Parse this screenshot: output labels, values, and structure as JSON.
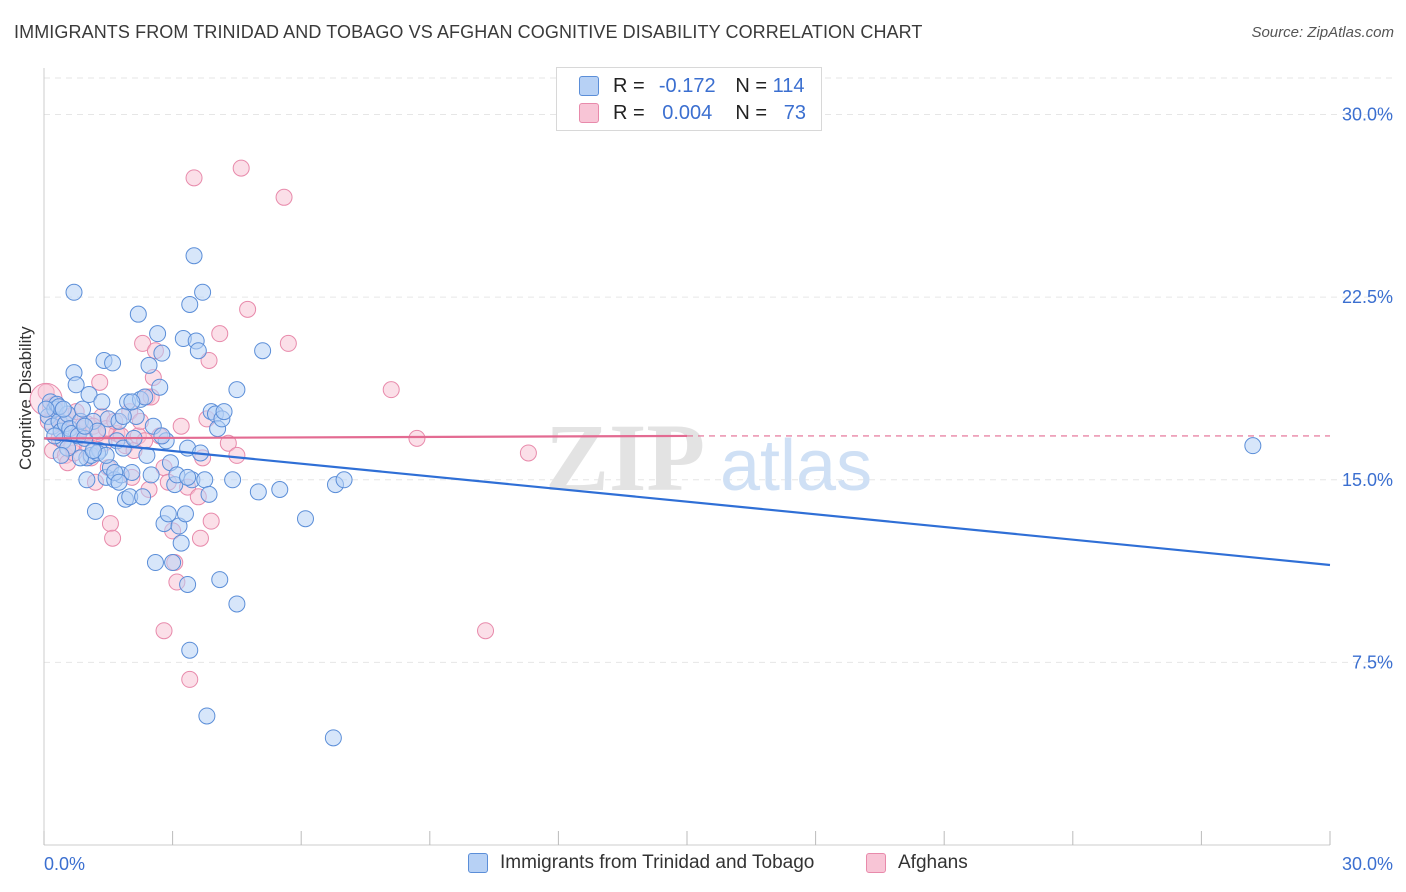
{
  "title": "IMMIGRANTS FROM TRINIDAD AND TOBAGO VS AFGHAN COGNITIVE DISABILITY CORRELATION CHART",
  "source": "Source: ZipAtlas.com",
  "watermark": {
    "zip": "ZIP",
    "atlas": "atlas"
  },
  "legend_top": [
    {
      "r_label": "R =",
      "r_value": "-0.172",
      "n_label": "N =",
      "n_value": "114"
    },
    {
      "r_label": "R =",
      "r_value": "0.004",
      "n_label": "N =",
      "n_value": "73"
    }
  ],
  "colors": {
    "blue_fill": "#b7d1f5",
    "blue_stroke": "#5b8ed8",
    "blue_line": "#2f6fd6",
    "pink_fill": "#f8c5d6",
    "pink_stroke": "#e88aab",
    "pink_line": "#e36b92",
    "tick_text": "#3b6fd0",
    "grid": "#e6e6e6"
  },
  "chart_data": {
    "type": "scatter",
    "title": "IMMIGRANTS FROM TRINIDAD AND TOBAGO VS AFGHAN COGNITIVE DISABILITY CORRELATION CHART",
    "xlabel": "",
    "ylabel": "Cognitive Disability",
    "xlim": [
      0,
      30
    ],
    "ylim": [
      0,
      31.5
    ],
    "x_tick_labels": [
      "0.0%",
      "30.0%"
    ],
    "y_ticks": [
      7.5,
      15.0,
      22.5,
      30.0
    ],
    "y_tick_labels": [
      "7.5%",
      "15.0%",
      "22.5%",
      "30.0%"
    ],
    "grid": true,
    "legend_position": "bottom",
    "series": [
      {
        "name": "Immigrants from Trinidad and Tobago",
        "color": "#5b8ed8",
        "R": -0.172,
        "N": 114,
        "trend": {
          "x": [
            0,
            30
          ],
          "y": [
            16.7,
            11.5
          ]
        },
        "points": [
          [
            0.1,
            17.6
          ],
          [
            0.15,
            18.2
          ],
          [
            0.2,
            17.2
          ],
          [
            0.25,
            17.9
          ],
          [
            0.3,
            18.1
          ],
          [
            0.35,
            17.4
          ],
          [
            0.4,
            17.0
          ],
          [
            0.45,
            16.6
          ],
          [
            0.5,
            17.3
          ],
          [
            0.55,
            17.7
          ],
          [
            0.6,
            17.1
          ],
          [
            0.65,
            16.9
          ],
          [
            0.7,
            19.4
          ],
          [
            0.7,
            22.7
          ],
          [
            0.75,
            18.9
          ],
          [
            0.8,
            16.8
          ],
          [
            0.85,
            17.4
          ],
          [
            0.9,
            17.9
          ],
          [
            0.95,
            16.7
          ],
          [
            1.0,
            15.9
          ],
          [
            1.0,
            15.0
          ],
          [
            1.05,
            18.5
          ],
          [
            1.1,
            16.0
          ],
          [
            1.15,
            17.4
          ],
          [
            1.2,
            13.7
          ],
          [
            1.25,
            17.0
          ],
          [
            1.3,
            16.2
          ],
          [
            1.35,
            18.2
          ],
          [
            1.4,
            19.9
          ],
          [
            1.45,
            15.1
          ],
          [
            1.5,
            17.5
          ],
          [
            1.55,
            15.5
          ],
          [
            1.6,
            19.8
          ],
          [
            1.65,
            15.0
          ],
          [
            1.7,
            16.6
          ],
          [
            1.75,
            17.4
          ],
          [
            1.8,
            15.2
          ],
          [
            1.85,
            16.3
          ],
          [
            1.9,
            14.2
          ],
          [
            1.95,
            18.2
          ],
          [
            2.0,
            14.3
          ],
          [
            2.05,
            15.3
          ],
          [
            2.1,
            16.7
          ],
          [
            2.15,
            17.6
          ],
          [
            2.2,
            21.8
          ],
          [
            2.25,
            18.3
          ],
          [
            2.3,
            14.3
          ],
          [
            2.35,
            18.4
          ],
          [
            2.4,
            16.0
          ],
          [
            2.45,
            19.7
          ],
          [
            2.5,
            15.2
          ],
          [
            2.55,
            17.2
          ],
          [
            2.6,
            11.6
          ],
          [
            2.65,
            21.0
          ],
          [
            2.7,
            18.8
          ],
          [
            2.75,
            20.2
          ],
          [
            2.8,
            13.2
          ],
          [
            2.85,
            16.6
          ],
          [
            2.9,
            13.6
          ],
          [
            2.95,
            15.7
          ],
          [
            3.0,
            11.6
          ],
          [
            3.05,
            14.8
          ],
          [
            3.1,
            15.2
          ],
          [
            3.15,
            13.1
          ],
          [
            3.2,
            12.4
          ],
          [
            3.25,
            20.8
          ],
          [
            3.3,
            13.6
          ],
          [
            3.35,
            16.3
          ],
          [
            3.4,
            22.2
          ],
          [
            3.45,
            15.0
          ],
          [
            3.5,
            24.2
          ],
          [
            3.55,
            20.7
          ],
          [
            3.6,
            20.3
          ],
          [
            3.65,
            16.1
          ],
          [
            3.7,
            22.7
          ],
          [
            3.75,
            15.0
          ],
          [
            3.8,
            5.3
          ],
          [
            3.85,
            14.4
          ],
          [
            3.9,
            17.8
          ],
          [
            4.0,
            17.7
          ],
          [
            4.05,
            17.1
          ],
          [
            4.1,
            10.9
          ],
          [
            4.15,
            17.5
          ],
          [
            4.2,
            17.8
          ],
          [
            4.4,
            15.0
          ],
          [
            4.5,
            18.7
          ],
          [
            4.5,
            9.9
          ],
          [
            5.0,
            14.5
          ],
          [
            5.1,
            20.3
          ],
          [
            5.5,
            14.6
          ],
          [
            6.1,
            13.4
          ],
          [
            6.8,
            14.8
          ],
          [
            7.0,
            15.0
          ],
          [
            6.75,
            4.4
          ],
          [
            3.35,
            10.7
          ],
          [
            3.4,
            8.0
          ],
          [
            28.2,
            16.4
          ],
          [
            0.55,
            16.3
          ],
          [
            0.85,
            15.9
          ],
          [
            1.25,
            16.1
          ],
          [
            1.45,
            16.0
          ],
          [
            1.65,
            15.3
          ],
          [
            2.75,
            16.8
          ],
          [
            3.35,
            15.1
          ],
          [
            0.35,
            18.0
          ],
          [
            0.45,
            17.9
          ],
          [
            0.95,
            17.2
          ],
          [
            1.15,
            16.2
          ],
          [
            1.85,
            17.6
          ],
          [
            2.05,
            18.2
          ],
          [
            0.05,
            17.9
          ],
          [
            0.25,
            16.8
          ],
          [
            0.4,
            16.0
          ],
          [
            1.75,
            14.9
          ]
        ]
      },
      {
        "name": "Afghans",
        "color": "#e88aab",
        "R": 0.004,
        "N": 73,
        "trend": {
          "x": [
            0,
            15
          ],
          "y": [
            16.7,
            16.8
          ]
        },
        "trend_dashed": {
          "x": [
            15,
            30
          ],
          "y": [
            16.8,
            16.8
          ]
        },
        "points": [
          [
            0.05,
            18.6
          ],
          [
            0.15,
            18.0
          ],
          [
            0.2,
            16.2
          ],
          [
            0.3,
            17.6
          ],
          [
            0.4,
            17.3
          ],
          [
            0.5,
            16.0
          ],
          [
            0.55,
            15.7
          ],
          [
            0.6,
            17.6
          ],
          [
            0.7,
            16.1
          ],
          [
            0.8,
            16.9
          ],
          [
            0.9,
            17.1
          ],
          [
            1.0,
            17.3
          ],
          [
            1.05,
            16.3
          ],
          [
            1.1,
            15.9
          ],
          [
            1.2,
            14.9
          ],
          [
            1.3,
            19.0
          ],
          [
            1.35,
            17.6
          ],
          [
            1.4,
            16.5
          ],
          [
            1.5,
            15.5
          ],
          [
            1.55,
            13.2
          ],
          [
            1.6,
            12.6
          ],
          [
            1.7,
            16.9
          ],
          [
            1.8,
            16.8
          ],
          [
            1.9,
            16.4
          ],
          [
            2.0,
            17.8
          ],
          [
            2.05,
            15.1
          ],
          [
            2.1,
            16.2
          ],
          [
            2.2,
            16.8
          ],
          [
            2.25,
            17.4
          ],
          [
            2.3,
            20.6
          ],
          [
            2.4,
            18.4
          ],
          [
            2.45,
            14.6
          ],
          [
            2.5,
            18.4
          ],
          [
            2.55,
            19.2
          ],
          [
            2.6,
            20.3
          ],
          [
            2.7,
            16.8
          ],
          [
            2.8,
            15.5
          ],
          [
            2.8,
            8.8
          ],
          [
            2.9,
            14.9
          ],
          [
            3.0,
            12.9
          ],
          [
            3.05,
            11.6
          ],
          [
            3.1,
            10.8
          ],
          [
            3.2,
            17.2
          ],
          [
            3.35,
            14.7
          ],
          [
            3.4,
            6.8
          ],
          [
            3.5,
            27.4
          ],
          [
            3.6,
            14.3
          ],
          [
            3.65,
            12.6
          ],
          [
            3.7,
            15.9
          ],
          [
            3.8,
            17.5
          ],
          [
            3.9,
            13.3
          ],
          [
            3.85,
            19.9
          ],
          [
            4.1,
            21.0
          ],
          [
            4.3,
            16.5
          ],
          [
            4.5,
            16.0
          ],
          [
            4.6,
            27.8
          ],
          [
            4.75,
            22.0
          ],
          [
            5.6,
            26.6
          ],
          [
            5.7,
            20.6
          ],
          [
            8.1,
            18.7
          ],
          [
            8.7,
            16.7
          ],
          [
            10.3,
            8.8
          ],
          [
            11.3,
            16.1
          ],
          [
            0.1,
            17.4
          ],
          [
            0.25,
            18.1
          ],
          [
            0.35,
            16.7
          ],
          [
            0.65,
            16.4
          ],
          [
            0.75,
            17.8
          ],
          [
            1.15,
            17.2
          ],
          [
            1.25,
            16.9
          ],
          [
            1.45,
            17.1
          ],
          [
            1.65,
            17.4
          ],
          [
            2.35,
            16.6
          ]
        ]
      }
    ]
  }
}
